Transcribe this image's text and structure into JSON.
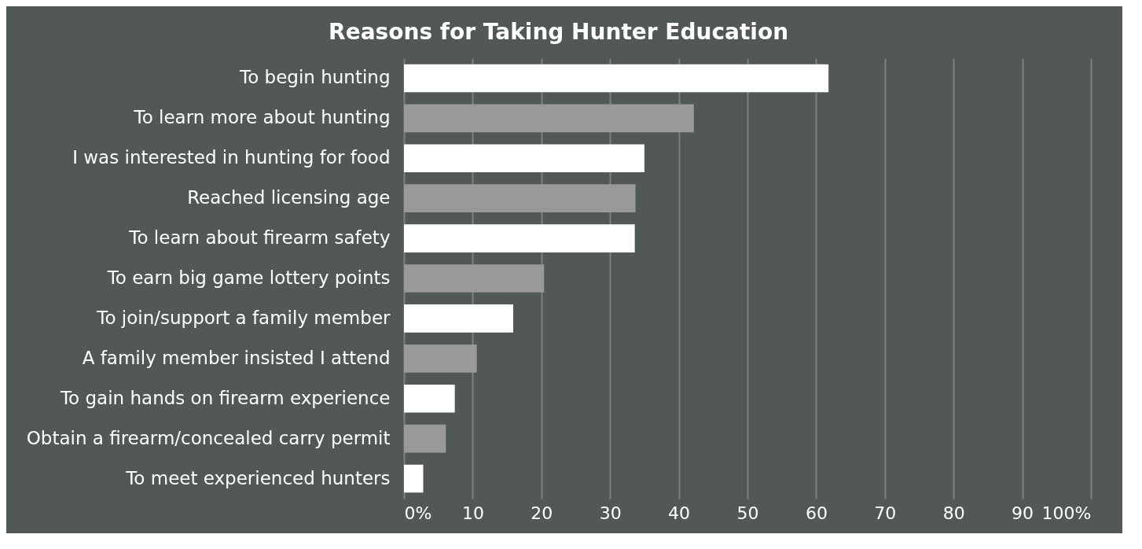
{
  "chart_data": {
    "type": "bar",
    "orientation": "horizontal",
    "title": "Reasons for Taking Hunter Education",
    "categories": [
      "To begin hunting",
      "To learn more about hunting",
      "I was interested in hunting for food",
      "Reached licensing age",
      "To learn about firearm safety",
      "To earn big game lottery points",
      "To join/support a family member",
      "A family member insisted I attend",
      "To gain hands on firearm experience",
      "Obtain a firearm/concealed carry permit",
      "To meet experienced hunters"
    ],
    "values": [
      61.8,
      42.2,
      35.0,
      33.7,
      33.6,
      20.4,
      15.9,
      10.6,
      7.4,
      6.1,
      2.8
    ],
    "colors": [
      "#ffffff",
      "#999999",
      "#ffffff",
      "#999999",
      "#ffffff",
      "#999999",
      "#ffffff",
      "#999999",
      "#ffffff",
      "#999999",
      "#ffffff"
    ],
    "xlim": [
      0,
      100
    ],
    "xticks": [
      {
        "value": 0,
        "label": "0%"
      },
      10,
      20,
      30,
      40,
      50,
      60,
      70,
      80,
      90,
      {
        "value": 100,
        "label": "100%"
      }
    ],
    "grid": "x"
  }
}
